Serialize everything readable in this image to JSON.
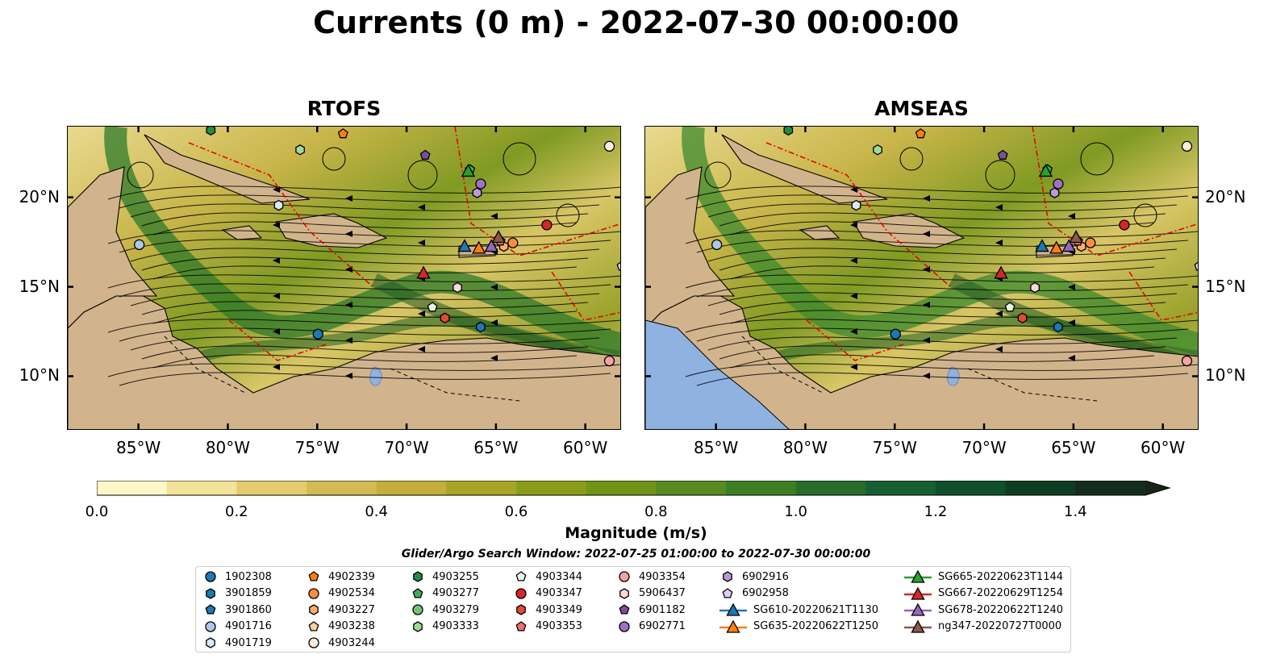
{
  "title": "Currents (0 m) - 2022-07-30 00:00:00",
  "panels": [
    {
      "title": "RTOFS",
      "variant": "rtofs"
    },
    {
      "title": "AMSEAS",
      "variant": "amseas"
    }
  ],
  "axes": {
    "lon_ticks": [
      "85°W",
      "80°W",
      "75°W",
      "70°W",
      "65°W",
      "60°W"
    ],
    "lat_ticks": [
      "20°N",
      "15°N",
      "10°N"
    ],
    "lon_range": [
      -89,
      -58
    ],
    "lat_range": [
      7,
      24
    ]
  },
  "colorbar": {
    "label": "Magnitude (m/s)",
    "ticks": [
      "0.0",
      "0.2",
      "0.4",
      "0.6",
      "0.8",
      "1.0",
      "1.2",
      "1.4"
    ],
    "range": [
      0,
      1.5
    ],
    "extend": "max",
    "colors": [
      "#fdf8c8",
      "#f1e39a",
      "#e3cc6e",
      "#d2bb55",
      "#c4ae3c",
      "#a7a526",
      "#8b9d18",
      "#6f9418",
      "#588a22",
      "#3f7f24",
      "#286d2c",
      "#165f30",
      "#104f2c",
      "#0f3d24",
      "#132d1c",
      "#192418"
    ]
  },
  "legend": {
    "title": "Glider/Argo Search Window: 2022-07-25 01:00:00 to 2022-07-30 00:00:00",
    "columns": [
      [
        {
          "label": "1902308",
          "shape": "circle",
          "color": "#1f77b4"
        },
        {
          "label": "3901859",
          "shape": "hexagon",
          "color": "#1f77b4"
        },
        {
          "label": "3901860",
          "shape": "pentagon",
          "color": "#1f77b4"
        },
        {
          "label": "4901716",
          "shape": "circle",
          "color": "#aec7e8"
        },
        {
          "label": "4901719",
          "shape": "hexagon",
          "color": "#dbe9f6"
        }
      ],
      [
        {
          "label": "4902339",
          "shape": "pentagon",
          "color": "#ff7f0e"
        },
        {
          "label": "4902534",
          "shape": "circle",
          "color": "#fd8d3c"
        },
        {
          "label": "4903227",
          "shape": "hexagon",
          "color": "#fdae6b"
        },
        {
          "label": "4903238",
          "shape": "pentagon",
          "color": "#fdd0a2"
        },
        {
          "label": "4903244",
          "shape": "circle",
          "color": "#feedde"
        }
      ],
      [
        {
          "label": "4903255",
          "shape": "hexagon",
          "color": "#238b45"
        },
        {
          "label": "4903277",
          "shape": "pentagon",
          "color": "#41ab5d"
        },
        {
          "label": "4903279",
          "shape": "circle",
          "color": "#74c476"
        },
        {
          "label": "4903333",
          "shape": "hexagon",
          "color": "#a1d99b"
        }
      ],
      [
        {
          "label": "4903344",
          "shape": "pentagon",
          "color": "#e5f5e0"
        },
        {
          "label": "4903347",
          "shape": "circle",
          "color": "#d62728"
        },
        {
          "label": "4903349",
          "shape": "hexagon",
          "color": "#e34a33"
        },
        {
          "label": "4903353",
          "shape": "pentagon",
          "color": "#f07070"
        }
      ],
      [
        {
          "label": "4903354",
          "shape": "circle",
          "color": "#f4a3a3"
        },
        {
          "label": "5906437",
          "shape": "hexagon",
          "color": "#fdd7de"
        },
        {
          "label": "6901182",
          "shape": "pentagon",
          "color": "#7b4ea3"
        },
        {
          "label": "6902771",
          "shape": "circle",
          "color": "#9e72c9"
        }
      ],
      [
        {
          "label": "6902916",
          "shape": "hexagon",
          "color": "#b99ad8"
        },
        {
          "label": "6902958",
          "shape": "pentagon",
          "color": "#ddcfee"
        },
        {
          "label": "SG610-20220621T1130",
          "shape": "triangle-line",
          "color": "#1f77b4"
        },
        {
          "label": "SG635-20220622T1250",
          "shape": "triangle-line",
          "color": "#ff7f0e"
        }
      ],
      [
        {
          "label": "SG665-20220623T1144",
          "shape": "triangle-line",
          "color": "#2ca02c"
        },
        {
          "label": "SG667-20220629T1254",
          "shape": "triangle-line",
          "color": "#d62728"
        },
        {
          "label": "SG678-20220622T1240",
          "shape": "triangle-line",
          "color": "#9467bd"
        },
        {
          "label": "ng347-20220727T0000",
          "shape": "triangle-line",
          "color": "#8c564b"
        }
      ]
    ]
  },
  "markers": [
    {
      "label": "1902308",
      "lon": -75.0,
      "lat": 12.4
    },
    {
      "label": "3901859",
      "lon": -65.9,
      "lat": 12.8
    },
    {
      "label": "4901716",
      "lon": -85.0,
      "lat": 17.4
    },
    {
      "label": "4901719",
      "lon": -77.2,
      "lat": 19.6
    },
    {
      "label": "4902339",
      "lon": -73.6,
      "lat": 23.6
    },
    {
      "label": "4902534",
      "lon": -64.1,
      "lat": 17.5
    },
    {
      "label": "4903227",
      "lon": -64.6,
      "lat": 17.3
    },
    {
      "label": "4903244",
      "lon": -58.7,
      "lat": 22.9
    },
    {
      "label": "4903255",
      "lon": -81.0,
      "lat": 23.8
    },
    {
      "label": "4903277",
      "lon": -66.5,
      "lat": 21.6
    },
    {
      "label": "4903333",
      "lon": -76.0,
      "lat": 22.7
    },
    {
      "label": "4903344",
      "lon": -68.6,
      "lat": 13.9
    },
    {
      "label": "4903347",
      "lon": -62.2,
      "lat": 18.5
    },
    {
      "label": "4903349",
      "lon": -67.9,
      "lat": 13.3
    },
    {
      "label": "4903353",
      "lon": -64.8,
      "lat": 17.6
    },
    {
      "label": "4903354",
      "lon": -58.7,
      "lat": 10.9
    },
    {
      "label": "5906437",
      "lon": -67.2,
      "lat": 15.0
    },
    {
      "label": "6901182",
      "lon": -69.0,
      "lat": 22.4
    },
    {
      "label": "6902771",
      "lon": -65.9,
      "lat": 20.8
    },
    {
      "label": "6902916",
      "lon": -66.1,
      "lat": 20.3
    },
    {
      "label": "6902958",
      "lon": -58.0,
      "lat": 16.2
    },
    {
      "label": "SG610-20220621T1130",
      "lon": -66.8,
      "lat": 17.3
    },
    {
      "label": "SG635-20220622T1250",
      "lon": -66.0,
      "lat": 17.2
    },
    {
      "label": "SG665-20220623T1144",
      "lon": -66.6,
      "lat": 21.5
    },
    {
      "label": "SG667-20220629T1254",
      "lon": -69.1,
      "lat": 15.8
    },
    {
      "label": "SG678-20220622T1240",
      "lon": -65.3,
      "lat": 17.3
    },
    {
      "label": "ng347-20220727T0000",
      "lon": -64.9,
      "lat": 17.8
    }
  ]
}
